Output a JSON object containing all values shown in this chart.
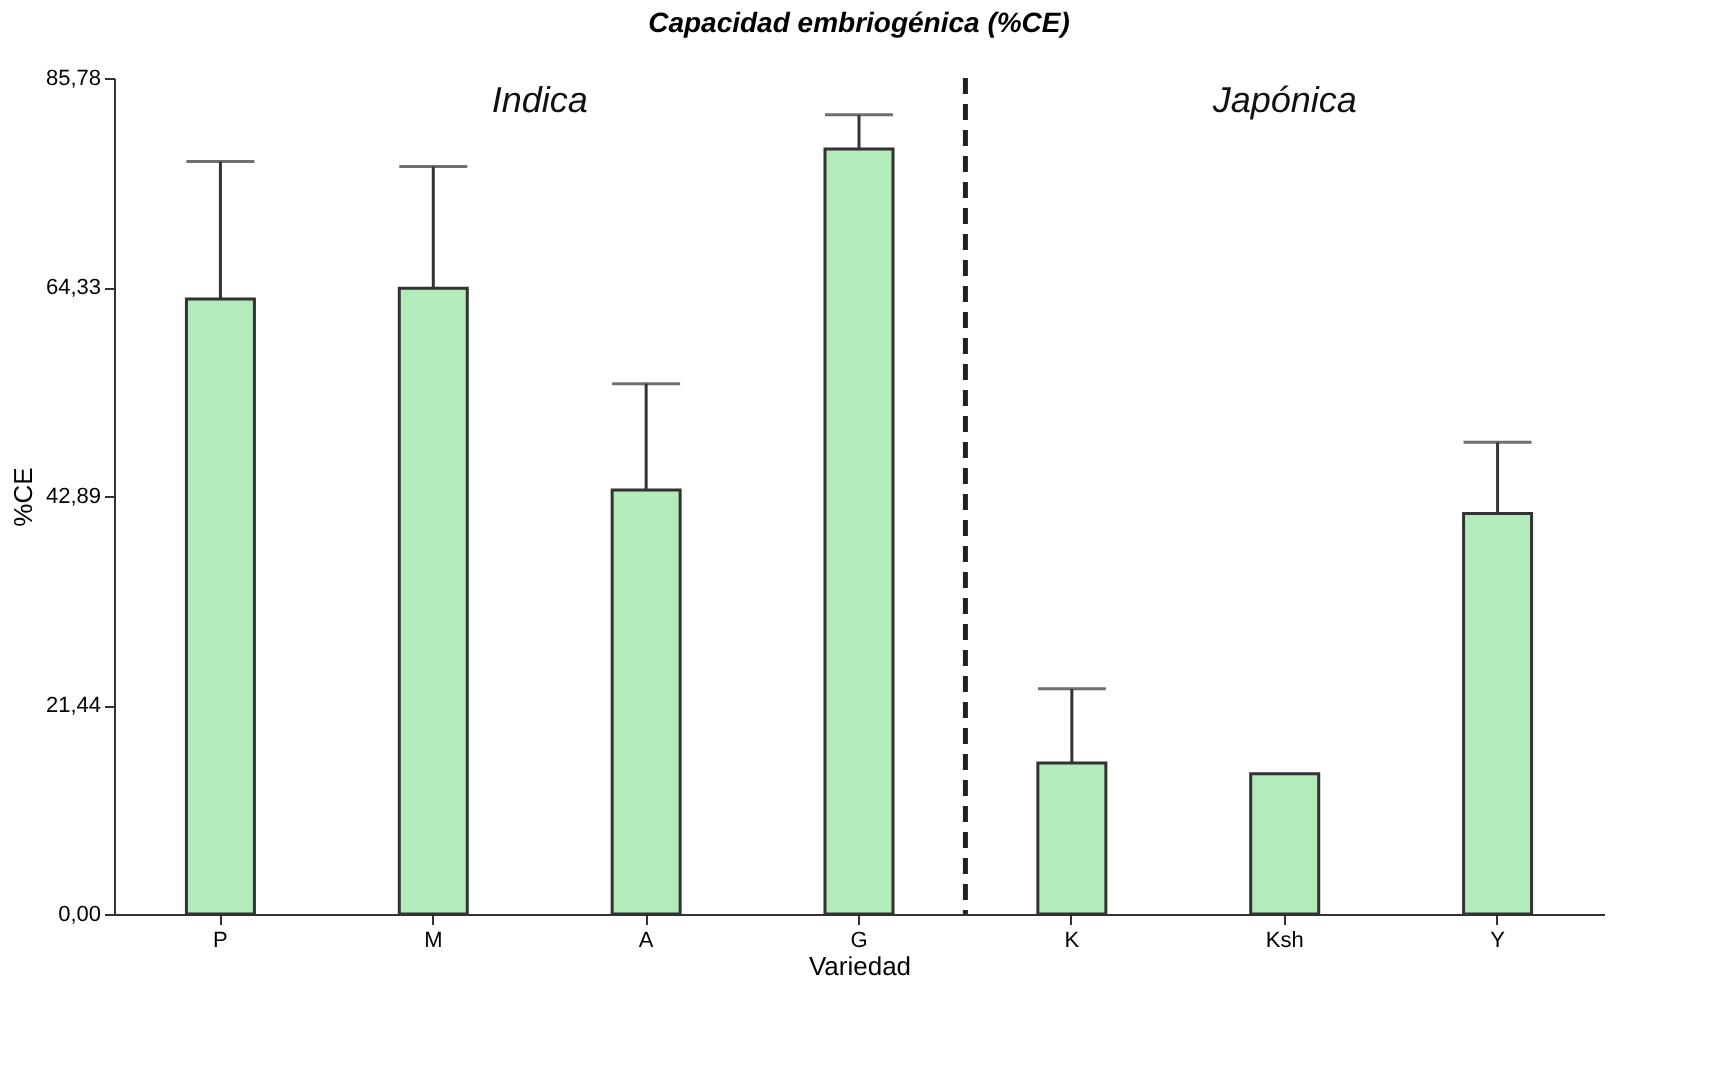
{
  "chart_data": {
    "type": "bar",
    "title": "Capacidad embriogénica (%CE)",
    "xlabel": "Variedad",
    "ylabel": "%CE",
    "categories": [
      "P",
      "M",
      "A",
      "G",
      "K",
      "Ksh",
      "Y"
    ],
    "values": [
      63.1,
      64.2,
      43.5,
      78.5,
      15.5,
      14.4,
      41.1
    ],
    "errors": [
      [
        63.1,
        77.2
      ],
      [
        64.2,
        76.7
      ],
      [
        43.5,
        54.4
      ],
      [
        78.5,
        82.0
      ],
      [
        15.5,
        23.1
      ],
      null,
      [
        41.1,
        48.4
      ]
    ],
    "color": "#b3ebbb",
    "ylim": [
      0,
      85.78
    ],
    "yticks": [
      {
        "value": 0,
        "label": "0,00"
      },
      {
        "value": 21.44,
        "label": "21,44"
      },
      {
        "value": 42.89,
        "label": "42,89"
      },
      {
        "value": 64.33,
        "label": "64,33"
      },
      {
        "value": 85.78,
        "label": "85,78"
      }
    ],
    "annotations": [
      "Indica",
      "Japónica"
    ],
    "grid": false
  }
}
